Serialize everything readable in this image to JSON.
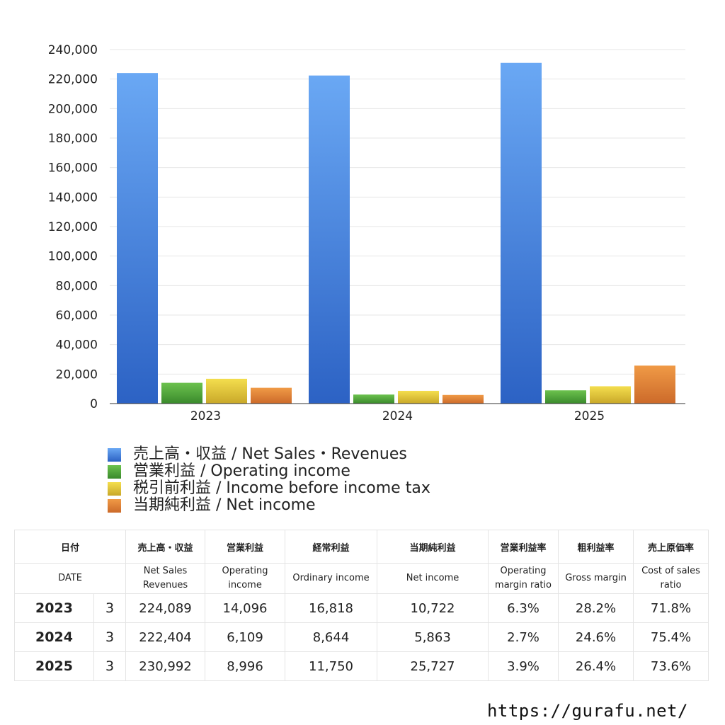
{
  "chart_data": {
    "type": "bar",
    "categories": [
      "2023",
      "2024",
      "2025"
    ],
    "series": [
      {
        "name": "売上高・収益 / Net Sales・Revenues",
        "color": "#4a86dc",
        "values": [
          224089,
          222404,
          230992
        ]
      },
      {
        "name": "営業利益 / Operating income",
        "color": "#4aa33c",
        "values": [
          14096,
          6109,
          8996
        ]
      },
      {
        "name": "税引前利益 / Income before income tax",
        "color": "#e3c63a",
        "values": [
          16818,
          8644,
          11750
        ]
      },
      {
        "name": "当期純利益 / Net income",
        "color": "#e0803a",
        "values": [
          10722,
          5863,
          25727
        ]
      }
    ],
    "yticks": [
      "0",
      "20,000",
      "40,000",
      "60,000",
      "80,000",
      "100,000",
      "120,000",
      "140,000",
      "160,000",
      "180,000",
      "200,000",
      "220,000",
      "240,000"
    ],
    "ylim": [
      0,
      240000
    ],
    "title": "",
    "xlabel": "",
    "ylabel": ""
  },
  "table": {
    "header_jp": [
      "日付",
      "売上高・収益",
      "営業利益",
      "経常利益",
      "当期純利益",
      "営業利益率",
      "粗利益率",
      "売上原価率"
    ],
    "header_en": [
      "DATE",
      "Net Sales Revenues",
      "Operating income",
      "Ordinary income",
      "Net income",
      "Operating margin ratio",
      "Gross margin",
      "Cost of sales ratio"
    ],
    "rows": [
      {
        "year": "2023",
        "month": "3",
        "sales": "224,089",
        "operating": "14,096",
        "ordinary": "16,818",
        "net": "10,722",
        "op_margin": "6.3%",
        "gross_margin": "28.2%",
        "cost_ratio": "71.8%"
      },
      {
        "year": "2024",
        "month": "3",
        "sales": "222,404",
        "operating": "6,109",
        "ordinary": "8,644",
        "net": "5,863",
        "op_margin": "2.7%",
        "gross_margin": "24.6%",
        "cost_ratio": "75.4%"
      },
      {
        "year": "2025",
        "month": "3",
        "sales": "230,992",
        "operating": "8,996",
        "ordinary": "11,750",
        "net": "25,727",
        "op_margin": "3.9%",
        "gross_margin": "26.4%",
        "cost_ratio": "73.6%"
      }
    ]
  },
  "site_url": "https://gurafu.net/"
}
